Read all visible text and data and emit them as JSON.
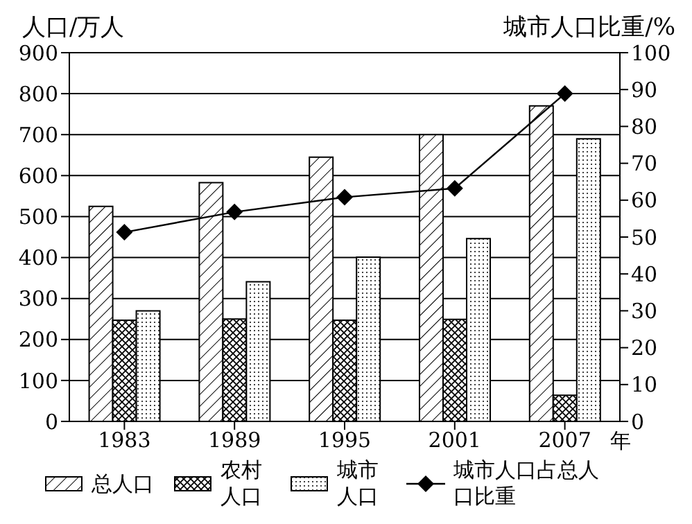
{
  "chart_data": {
    "type": "bar",
    "xlabel": "年",
    "ylabel": "人口/万人",
    "y2label": "城市人口比重/%",
    "categories": [
      "1983",
      "1989",
      "1995",
      "2001",
      "2007"
    ],
    "series": [
      {
        "name": "总人口",
        "color": "#000000",
        "values": [
          525,
          583,
          645,
          700,
          770
        ]
      },
      {
        "name": "农村人口",
        "color": "#000000",
        "values": [
          247,
          250,
          247,
          249,
          64
        ]
      },
      {
        "name": "城市人口",
        "color": "#000000",
        "values": [
          270,
          341,
          401,
          446,
          690
        ]
      },
      {
        "name": "城市人口占总人口比重",
        "type": "line",
        "axis": "y2",
        "color": "#000000",
        "values": [
          51.3,
          56.8,
          60.8,
          63.2,
          88.9
        ]
      }
    ],
    "ylim": [
      0,
      900
    ],
    "yticks": [
      0,
      100,
      200,
      300,
      400,
      500,
      600,
      700,
      800,
      900
    ],
    "y2lim": [
      0,
      100
    ],
    "y2ticks": [
      0,
      10,
      20,
      30,
      40,
      50,
      60,
      70,
      80,
      90,
      100
    ],
    "grid": "y",
    "legend": "bottom",
    "marker": "diamond",
    "line_style": "solid"
  }
}
